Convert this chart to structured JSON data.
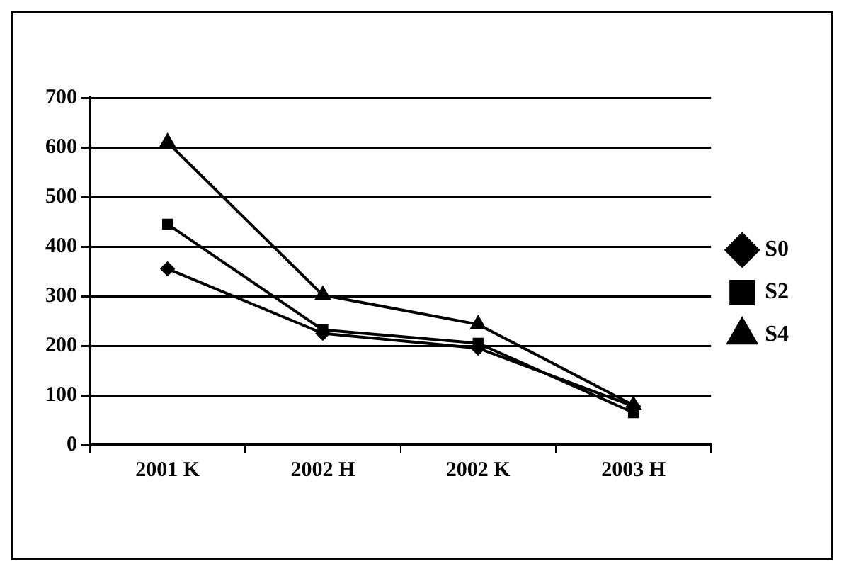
{
  "chart_data": {
    "type": "line",
    "categories": [
      "2001 K",
      "2002 H",
      "2002 K",
      "2003 H"
    ],
    "series": [
      {
        "name": "S0",
        "color": "#000000",
        "marker": "diamond",
        "values": [
          355,
          225,
          195,
          78
        ]
      },
      {
        "name": "S2",
        "color": "#000000",
        "marker": "square",
        "values": [
          445,
          232,
          205,
          65
        ]
      },
      {
        "name": "S4",
        "color": "#000000",
        "marker": "triangle",
        "values": [
          610,
          302,
          243,
          80
        ]
      }
    ],
    "ylim": [
      0,
      700
    ],
    "yticks": [
      0,
      100,
      200,
      300,
      400,
      500,
      600,
      700
    ],
    "grid": "y",
    "legend": "right",
    "line_style": "solid"
  }
}
